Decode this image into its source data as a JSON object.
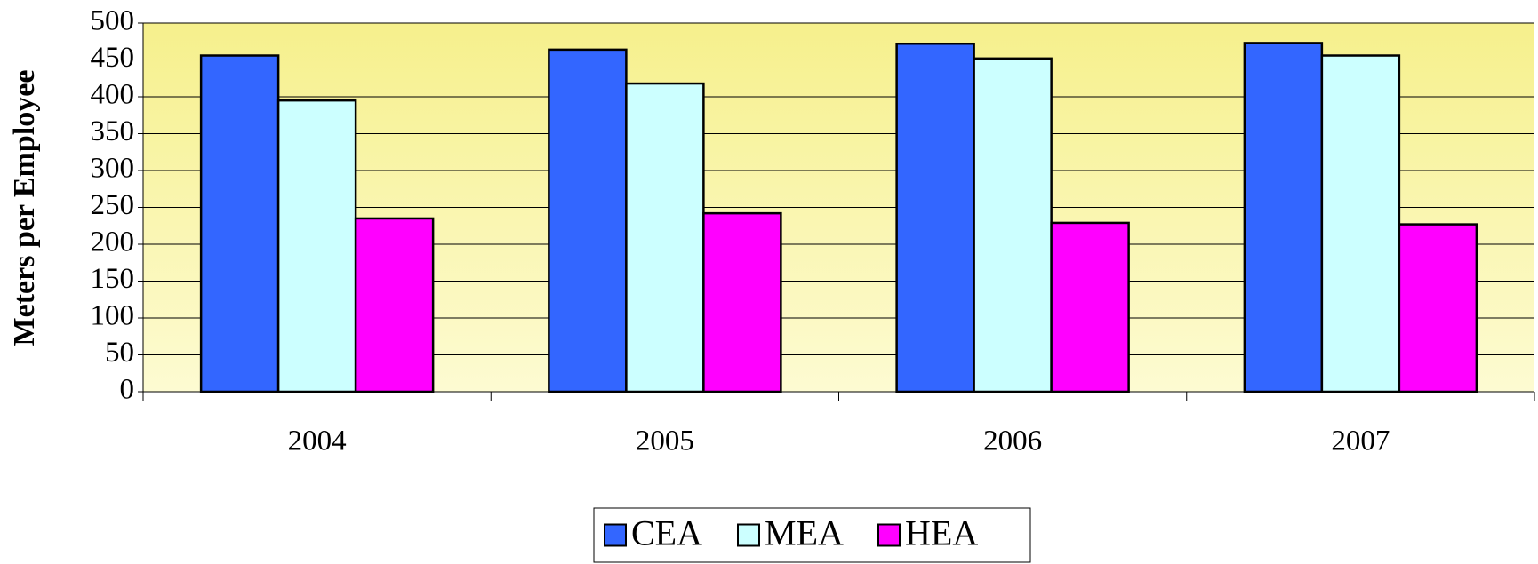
{
  "chart_data": {
    "type": "bar",
    "y_label": "Meters per Employee",
    "categories": [
      "2004",
      "2005",
      "2006",
      "2007"
    ],
    "series": [
      {
        "name": "CEA",
        "color": "#3366ff",
        "values": [
          456,
          464,
          472,
          473
        ]
      },
      {
        "name": "MEA",
        "color": "#ccffff",
        "values": [
          395,
          418,
          452,
          456
        ]
      },
      {
        "name": "HEA",
        "color": "#ff00ff",
        "values": [
          235,
          242,
          229,
          227
        ]
      }
    ],
    "ylim": [
      0,
      500
    ],
    "yticks": [
      0,
      50,
      100,
      150,
      200,
      250,
      300,
      350,
      400,
      450,
      500
    ],
    "grid": true,
    "legend": "bottom"
  }
}
